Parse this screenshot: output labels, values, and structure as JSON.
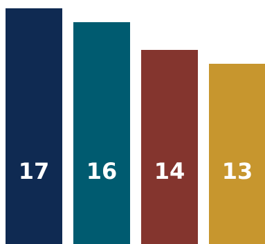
{
  "chart_data": {
    "type": "bar",
    "categories": [
      "",
      "",
      "",
      ""
    ],
    "values": [
      17,
      16,
      14,
      13
    ],
    "data_labels": [
      "17",
      "16",
      "14",
      "13"
    ],
    "colors": [
      "#0f2a52",
      "#005b70",
      "#84352e",
      "#c7962e"
    ],
    "title": "",
    "xlabel": "",
    "ylabel": "",
    "ylim": [
      0,
      17
    ],
    "grid": false,
    "legend": "none"
  }
}
